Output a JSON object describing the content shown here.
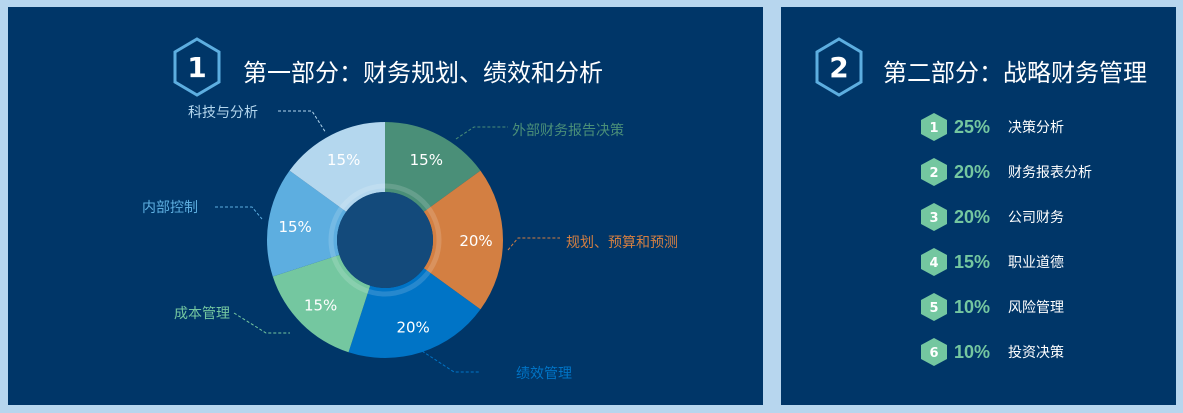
{
  "part1": {
    "number": "1",
    "title": "第一部分：财务规划、绩效和分析"
  },
  "part2": {
    "number": "2",
    "title": "第二部分：战略财务管理",
    "items": [
      {
        "n": "1",
        "pct": "25%",
        "label": "决策分析"
      },
      {
        "n": "2",
        "pct": "20%",
        "label": "财务报表分析"
      },
      {
        "n": "3",
        "pct": "20%",
        "label": "公司财务"
      },
      {
        "n": "4",
        "pct": "15%",
        "label": "职业道德"
      },
      {
        "n": "5",
        "pct": "10%",
        "label": "风险管理"
      },
      {
        "n": "6",
        "pct": "10%",
        "label": "投资决策"
      }
    ]
  },
  "chart_data": {
    "type": "pie",
    "donut": true,
    "start": "top, clockwise",
    "slices": [
      {
        "label": "外部财务报告决策",
        "value": 15,
        "text": "15%",
        "color": "#4a8f78"
      },
      {
        "label": "规划、预算和预测",
        "value": 20,
        "text": "20%",
        "color": "#d37f42"
      },
      {
        "label": "绩效管理",
        "value": 20,
        "text": "20%",
        "color": "#0074c6"
      },
      {
        "label": "成本管理",
        "value": 15,
        "text": "15%",
        "color": "#74c7a0"
      },
      {
        "label": "内部控制",
        "value": 15,
        "text": "15%",
        "color": "#5daee0"
      },
      {
        "label": "科技与分析",
        "value": 15,
        "text": "15%",
        "color": "#b4d7ee"
      }
    ]
  },
  "colors": {
    "panel": "#003668",
    "accent_green": "#74c7a0",
    "hex_outline": "#5daee0"
  }
}
